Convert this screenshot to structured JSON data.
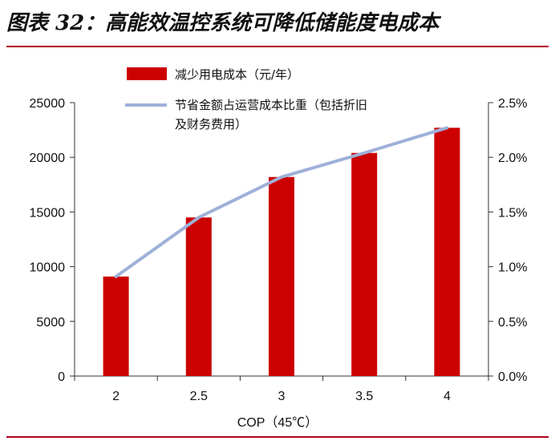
{
  "page": {
    "title": "图表 32：高能效温控系统可降低储能度电成本"
  },
  "chart_data": {
    "type": "bar",
    "xlabel": "COP（45℃）",
    "categories": [
      "2",
      "2.5",
      "3",
      "3.5",
      "4"
    ],
    "series": [
      {
        "name": "减少用电成本（元/年）",
        "type": "bar",
        "axis": "left",
        "color": "#cc0000",
        "values": [
          9100,
          14500,
          18200,
          20400,
          22700
        ]
      },
      {
        "name": "节省金额占运营成本比重（包括折旧及财务费用）",
        "name_lines": [
          "节省金额占运营成本比重（包括折旧",
          "及财务费用）"
        ],
        "type": "line",
        "axis": "right",
        "color": "#9fb0d9",
        "values": [
          0.0091,
          0.0145,
          0.0182,
          0.0204,
          0.0227
        ]
      }
    ],
    "y_left": {
      "min": 0,
      "max": 25000,
      "ticks": [
        "0",
        "5000",
        "10000",
        "15000",
        "20000",
        "25000"
      ]
    },
    "y_right": {
      "min": 0,
      "max": 0.025,
      "ticks": [
        "0.0%",
        "0.5%",
        "1.0%",
        "1.5%",
        "2.0%",
        "2.5%"
      ]
    },
    "grid": false,
    "legend": "top"
  }
}
